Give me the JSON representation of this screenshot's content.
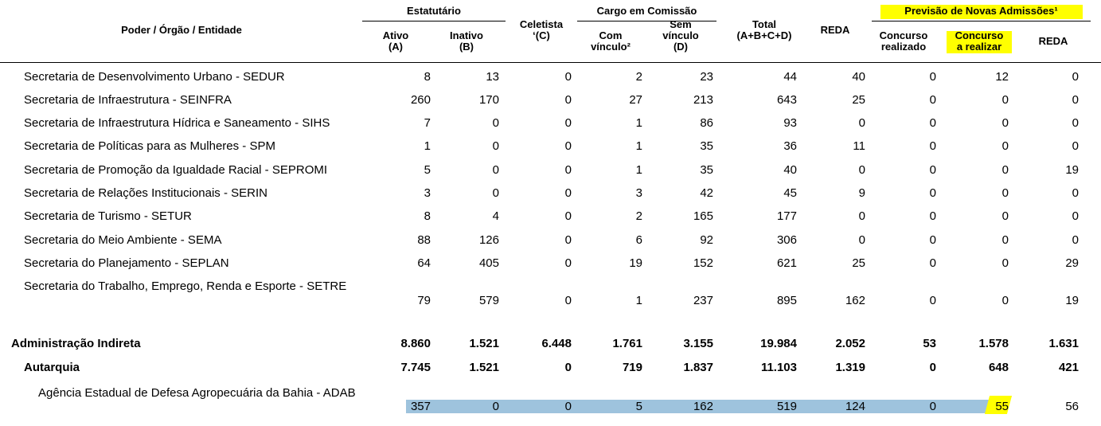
{
  "table": {
    "header": {
      "entity": "Poder / Órgão / Entidade",
      "groups": [
        "Estatutário",
        "Cargo em Comissão",
        "Previsão de Novas Admissões¹"
      ],
      "columns": [
        "Ativo\n(A)",
        "Inativo\n(B)",
        "Celetista\n‘(C)",
        "Com\nvínculo²",
        "Sem\nvínculo\n(D)",
        "Total\n(A+B+C+D)",
        "REDA",
        "Concurso\nrealizado",
        "Concurso\na realizar",
        "REDA"
      ]
    },
    "rows": [
      {
        "label": "Secretaria de Desenvolvimento Urbano - SEDUR",
        "values": [
          "8",
          "13",
          "0",
          "2",
          "23",
          "44",
          "40",
          "0",
          "12",
          "0"
        ]
      },
      {
        "label": "Secretaria de Infraestrutura - SEINFRA",
        "values": [
          "260",
          "170",
          "0",
          "27",
          "213",
          "643",
          "25",
          "0",
          "0",
          "0"
        ]
      },
      {
        "label": "Secretaria de Infraestrutura Hídrica e Saneamento - SIHS",
        "values": [
          "7",
          "0",
          "0",
          "1",
          "86",
          "93",
          "0",
          "0",
          "0",
          "0"
        ]
      },
      {
        "label": "Secretaria de Políticas para as Mulheres - SPM",
        "values": [
          "1",
          "0",
          "0",
          "1",
          "35",
          "36",
          "11",
          "0",
          "0",
          "0"
        ]
      },
      {
        "label": "Secretaria de Promoção da Igualdade Racial - SEPROMI",
        "values": [
          "5",
          "0",
          "0",
          "1",
          "35",
          "40",
          "0",
          "0",
          "0",
          "19"
        ]
      },
      {
        "label": "Secretaria de Relações Institucionais - SERIN",
        "values": [
          "3",
          "0",
          "0",
          "3",
          "42",
          "45",
          "9",
          "0",
          "0",
          "0"
        ]
      },
      {
        "label": "Secretaria de Turismo - SETUR",
        "values": [
          "8",
          "4",
          "0",
          "2",
          "165",
          "177",
          "0",
          "0",
          "0",
          "0"
        ]
      },
      {
        "label": "Secretaria do Meio Ambiente - SEMA",
        "values": [
          "88",
          "126",
          "0",
          "6",
          "92",
          "306",
          "0",
          "0",
          "0",
          "0"
        ]
      },
      {
        "label": "Secretaria do Planejamento - SEPLAN",
        "values": [
          "64",
          "405",
          "0",
          "19",
          "152",
          "621",
          "25",
          "0",
          "0",
          "29"
        ]
      },
      {
        "label": "Secretaria do Trabalho, Emprego, Renda e Esporte - SETRE",
        "values": [
          "79",
          "579",
          "0",
          "1",
          "237",
          "895",
          "162",
          "0",
          "0",
          "19"
        ]
      },
      {
        "label": "Administração Indireta",
        "values": [
          "8.860",
          "1.521",
          "6.448",
          "1.761",
          "3.155",
          "19.984",
          "2.052",
          "53",
          "1.578",
          "1.631"
        ]
      },
      {
        "label": "Autarquia",
        "values": [
          "7.745",
          "1.521",
          "0",
          "719",
          "1.837",
          "11.103",
          "1.319",
          "0",
          "648",
          "421"
        ]
      },
      {
        "label": "Agência Estadual de Defesa Agropecuária da Bahia - ADAB",
        "values": [
          "357",
          "0",
          "0",
          "5",
          "162",
          "519",
          "124",
          "0",
          "55",
          "56"
        ]
      }
    ]
  }
}
